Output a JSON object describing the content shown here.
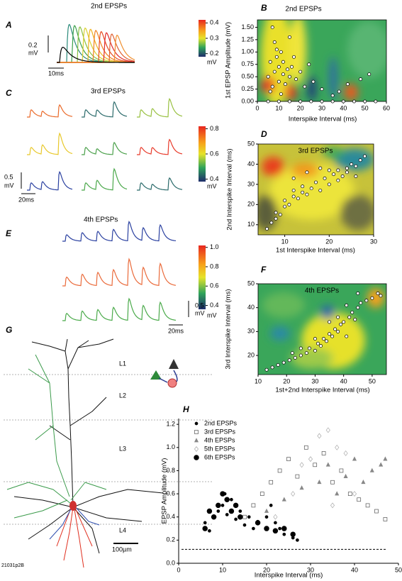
{
  "panels": {
    "A": {
      "label": "A",
      "title": "2nd EPSPs",
      "scale_y": "0.2",
      "scale_y_unit": "mV",
      "scale_x": "10ms",
      "colorbar": {
        "lim": [
          0.18,
          0.42
        ],
        "ticks": [
          0.4,
          0.3,
          0.2
        ],
        "unit": "mV"
      }
    },
    "C": {
      "label": "C",
      "title": "3rd EPSPs",
      "scale_y": "0.5",
      "scale_y_unit": "mV",
      "scale_x": "20ms",
      "colorbar": {
        "lim": [
          0.38,
          0.82
        ],
        "ticks": [
          0.8,
          0.6,
          0.4
        ],
        "unit": "mV"
      }
    },
    "E": {
      "label": "E",
      "title": "4th EPSPs",
      "scale_y": "0.5",
      "scale_y_unit": "mV",
      "scale_x": "20ms",
      "colorbar": {
        "lim": [
          0.36,
          1.02
        ],
        "ticks": [
          {
            "value": 1,
            "label": "1.0"
          },
          0.8,
          0.6,
          0.4
        ],
        "unit": "mV"
      }
    },
    "G": {
      "label": "G",
      "layers": [
        "L1",
        "L2",
        "L3",
        "L4"
      ],
      "scale": "100µm",
      "cell_id": "21031p2B"
    }
  },
  "chart_data": [
    {
      "type": "scatter",
      "panel": "B",
      "title": "2nd EPSPs",
      "xlabel": "Interspike Interval (ms)",
      "ylabel": "1st EPSP Amplitude (mV)",
      "xlim": [
        0,
        60
      ],
      "ylim": [
        0,
        1.65
      ],
      "xticks": [
        0,
        10,
        20,
        30,
        40,
        50,
        60
      ],
      "yticks": [
        {
          "value": 0,
          "label": "0.00"
        },
        {
          "value": 0.25,
          "label": "0.25"
        },
        {
          "value": 0.5,
          "label": "0.50"
        },
        {
          "value": 0.75,
          "label": "0.75"
        },
        {
          "value": 1,
          "label": "1.00"
        },
        {
          "value": 1.25,
          "label": "1.25"
        },
        {
          "value": 1.5,
          "label": "1.50"
        }
      ],
      "color": "#ffffff",
      "edgecolor": "#000000",
      "x": [
        5,
        6,
        7,
        8,
        8,
        9,
        10,
        10,
        11,
        12,
        12,
        13,
        14,
        15,
        15,
        16,
        18,
        20,
        22,
        24,
        7,
        9,
        6,
        11,
        17,
        26,
        30,
        38,
        42,
        48,
        52,
        35,
        5,
        10,
        15,
        20,
        25,
        30,
        35,
        40,
        45,
        50,
        55
      ],
      "values": [
        0.5,
        0.8,
        0.3,
        1.2,
        0.6,
        0.9,
        0.4,
        0.7,
        1.0,
        0.55,
        0.8,
        0.35,
        0.65,
        1.3,
        0.5,
        0.7,
        0.45,
        0.6,
        0.3,
        0.75,
        1.5,
        1.05,
        0.2,
        0.15,
        0.9,
        0.4,
        0.25,
        0.2,
        0.35,
        0.45,
        0.55,
        0.12,
        0,
        0,
        0,
        0,
        0,
        0,
        0,
        0,
        0,
        0,
        0
      ]
    },
    {
      "type": "scatter",
      "panel": "D",
      "title": "3rd EPSPs",
      "xlabel": "1st Interspike Interval (ms)",
      "ylabel": "2nd Interspike Interval (ms)",
      "xlim": [
        4,
        30
      ],
      "ylim": [
        5,
        50
      ],
      "xticks": [
        10,
        20,
        30
      ],
      "yticks": [
        10,
        20,
        30,
        40,
        50
      ],
      "color": "#ffffff",
      "edgecolor": "#000000",
      "x": [
        6,
        7,
        8,
        8,
        9,
        10,
        10,
        11,
        12,
        12,
        13,
        14,
        14,
        15,
        16,
        17,
        18,
        19,
        20,
        21,
        22,
        23,
        24,
        25,
        26,
        27,
        28,
        20,
        22,
        12,
        15,
        18,
        24,
        26
      ],
      "values": [
        8,
        11,
        13,
        16,
        15,
        19,
        22,
        20,
        24,
        27,
        23,
        26,
        29,
        25,
        28,
        31,
        27,
        33,
        30,
        35,
        37,
        34,
        38,
        40,
        39,
        42,
        44,
        37,
        32,
        33,
        36,
        38,
        36,
        34
      ]
    },
    {
      "type": "scatter",
      "panel": "F",
      "title": "4th EPSPs",
      "xlabel": "1st+2nd Interspike Interval (ms)",
      "ylabel": "3rd Interspike Interval (ms)",
      "xlim": [
        10,
        55
      ],
      "ylim": [
        12,
        50
      ],
      "xticks": [
        10,
        20,
        30,
        40,
        50
      ],
      "yticks": [
        20,
        30,
        40,
        50
      ],
      "color": "#ffffff",
      "edgecolor": "#000000",
      "x": [
        13,
        15,
        17,
        19,
        21,
        23,
        25,
        27,
        28,
        30,
        31,
        32,
        33,
        34,
        35,
        36,
        37,
        38,
        39,
        40,
        41,
        42,
        43,
        44,
        45,
        46,
        48,
        50,
        52,
        38,
        41,
        30,
        25,
        35,
        45,
        53,
        22
      ],
      "values": [
        14,
        15,
        16,
        17,
        18,
        19,
        20,
        21,
        23,
        22,
        25,
        24,
        27,
        26,
        29,
        28,
        31,
        30,
        33,
        34,
        28,
        36,
        38,
        35,
        40,
        42,
        43,
        44,
        46,
        36,
        41,
        27,
        23,
        34,
        46,
        45,
        21
      ]
    },
    {
      "type": "scatter",
      "panel": "H",
      "xlabel": "Interspike Interval (ms)",
      "ylabel": "EPSP Amplitude (mV)",
      "xlim": [
        0,
        50
      ],
      "ylim": [
        0,
        1.25
      ],
      "xticks": [
        0,
        10,
        20,
        30,
        40,
        50
      ],
      "yticks": [
        {
          "value": 0,
          "label": "0.0"
        },
        0.2,
        0.4,
        0.6,
        0.8,
        {
          "value": 1,
          "label": "1.0"
        },
        1.2
      ],
      "reference_line": 0.12,
      "series": [
        {
          "name": "2nd EPSPs",
          "marker": "circle",
          "color": "#000000",
          "edgecolor": "#000000",
          "size": 2,
          "x": [
            6,
            7,
            8,
            9,
            10,
            10.5,
            11,
            12,
            13,
            14,
            15,
            16,
            17,
            18,
            20,
            21,
            22,
            23,
            24,
            26,
            27
          ],
          "values": [
            0.35,
            0.28,
            0.4,
            0.45,
            0.5,
            0.6,
            0.42,
            0.55,
            0.38,
            0.45,
            0.33,
            0.4,
            0.3,
            0.36,
            0.4,
            0.5,
            0.35,
            0.3,
            0.25,
            0.22,
            0.2
          ]
        },
        {
          "name": "3rd EPSPs",
          "marker": "square",
          "color": "#ffffff",
          "edgecolor": "#555555",
          "size": 2.5,
          "x": [
            15,
            17,
            19,
            21,
            23,
            25,
            27,
            29,
            31,
            33,
            35,
            37,
            39,
            41,
            43,
            45,
            47
          ],
          "values": [
            0.4,
            0.5,
            0.6,
            0.7,
            0.8,
            0.9,
            0.75,
            1.0,
            0.85,
            0.95,
            0.7,
            0.8,
            0.6,
            0.55,
            0.5,
            0.45,
            0.38
          ]
        },
        {
          "name": "4th EPSPs",
          "marker": "triangle",
          "color": "#888888",
          "edgecolor": "#888888",
          "size": 2.5,
          "x": [
            20,
            24,
            28,
            32,
            34,
            36,
            38,
            40,
            42,
            44,
            46,
            47
          ],
          "values": [
            0.45,
            0.55,
            0.65,
            0.7,
            0.85,
            0.6,
            0.75,
            0.9,
            0.7,
            0.8,
            0.85,
            0.9
          ]
        },
        {
          "name": "5th EPSPs",
          "marker": "diamond",
          "color": "#ffffff",
          "edgecolor": "#aaaaaa",
          "size": 2.6,
          "x": [
            22,
            26,
            28,
            30,
            32,
            34,
            36,
            38,
            40,
            35
          ],
          "values": [
            0.4,
            0.6,
            0.85,
            0.9,
            1.1,
            1.15,
            1.0,
            0.95,
            0.6,
            0.5
          ]
        },
        {
          "name": "6th EPSPs",
          "marker": "circle",
          "color": "#000000",
          "edgecolor": "#000000",
          "size": 3.4,
          "x": [
            6,
            7,
            8,
            9,
            10,
            11,
            12,
            13,
            14,
            18,
            20,
            22,
            24,
            26
          ],
          "values": [
            0.3,
            0.45,
            0.4,
            0.5,
            0.6,
            0.55,
            0.45,
            0.5,
            0.4,
            0.35,
            0.3,
            0.28,
            0.3,
            0.25
          ]
        }
      ]
    }
  ]
}
